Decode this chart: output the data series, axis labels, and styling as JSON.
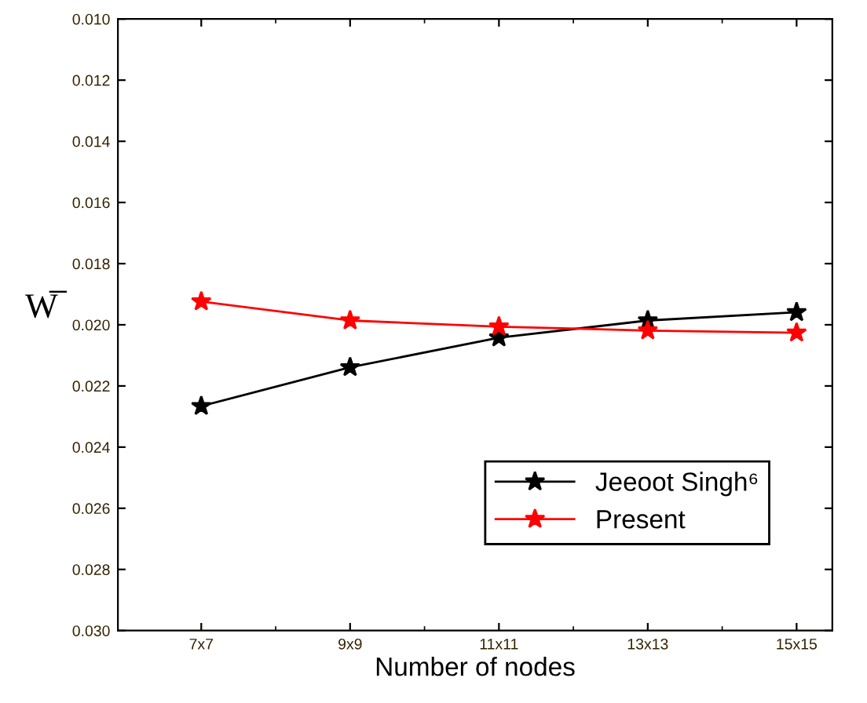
{
  "chart_data": {
    "type": "line",
    "xlabel": "Number of nodes",
    "ylabel": "W̅",
    "categories": [
      "7x7",
      "9x9",
      "11x11",
      "13x13",
      "15x15"
    ],
    "series": [
      {
        "name": "Jeeoot Singh⁶",
        "color": "#000000",
        "values": [
          0.02266,
          0.02139,
          0.02042,
          0.01986,
          0.01959
        ]
      },
      {
        "name": "Present",
        "color": "#ff0000",
        "values": [
          0.01924,
          0.01986,
          0.02006,
          0.02019,
          0.02026
        ]
      }
    ],
    "ylim": [
      0.03,
      0.01
    ],
    "yticks": [
      {
        "value": 0.01,
        "label": "0.010"
      },
      0.012,
      0.014,
      0.016,
      0.018,
      {
        "value": 0.02,
        "label": "0.020"
      },
      0.022,
      0.024,
      0.026,
      0.028,
      {
        "value": 0.03,
        "label": "0.030"
      }
    ],
    "marker": "star",
    "line_style": "solid",
    "grid": false,
    "legend": "bottom right"
  }
}
